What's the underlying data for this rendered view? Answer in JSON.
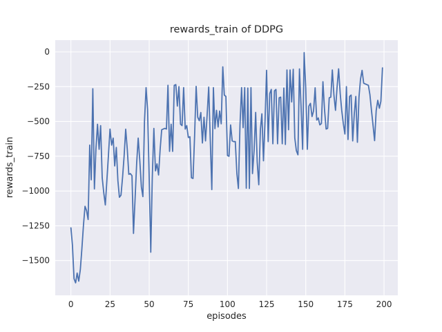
{
  "chart_data": {
    "type": "line",
    "title": "rewards_train of DDPG",
    "xlabel": "episodes",
    "ylabel": "rewards_train",
    "x_ticks": [
      0,
      25,
      50,
      75,
      100,
      125,
      150,
      175,
      200
    ],
    "y_ticks": [
      0,
      -250,
      -500,
      -750,
      -1000,
      -1250,
      -1500
    ],
    "xlim": [
      -10,
      208.8
    ],
    "ylim": [
      -1750,
      84.5
    ],
    "grid": true,
    "legend_position": "none",
    "colors": {
      "line": "#4c72b0",
      "plot_background": "#eaeaf2",
      "grid_line": "#ffffff",
      "text": "#262626"
    },
    "series": [
      {
        "name": "rewards_train",
        "x_is_episode_index": true,
        "values": [
          -1265,
          -1390,
          -1630,
          -1660,
          -1590,
          -1648,
          -1565,
          -1420,
          -1250,
          -1110,
          -1140,
          -1205,
          -670,
          -920,
          -265,
          -985,
          -700,
          -520,
          -700,
          -530,
          -905,
          -1015,
          -1100,
          -920,
          -737,
          -555,
          -670,
          -620,
          -820,
          -687,
          -925,
          -1045,
          -1030,
          -900,
          -750,
          -556,
          -700,
          -880,
          -875,
          -890,
          -1305,
          -1055,
          -800,
          -620,
          -780,
          -970,
          -1040,
          -500,
          -257,
          -415,
          -900,
          -1440,
          -905,
          -550,
          -855,
          -805,
          -885,
          -700,
          -560,
          -555,
          -550,
          -555,
          -240,
          -715,
          -520,
          -715,
          -240,
          -235,
          -390,
          -250,
          -520,
          -530,
          -257,
          -555,
          -530,
          -615,
          -610,
          -905,
          -910,
          -600,
          -248,
          -470,
          -495,
          -436,
          -655,
          -470,
          -640,
          -455,
          -253,
          -620,
          -990,
          -257,
          -552,
          -420,
          -540,
          -425,
          -517,
          -108,
          -310,
          -320,
          -745,
          -750,
          -525,
          -640,
          -645,
          -645,
          -875,
          -982,
          -525,
          -257,
          -545,
          -257,
          -980,
          -260,
          -982,
          -257,
          -875,
          -710,
          -435,
          -790,
          -955,
          -560,
          -445,
          -783,
          -490,
          -133,
          -645,
          -300,
          -270,
          -660,
          -280,
          -270,
          -660,
          -330,
          -325,
          -660,
          -260,
          -665,
          -130,
          -560,
          -130,
          -360,
          -125,
          -617,
          -710,
          -740,
          -123,
          -390,
          -700,
          -5,
          -260,
          -700,
          -390,
          -370,
          -465,
          -425,
          -258,
          -490,
          -475,
          -525,
          -515,
          -215,
          -415,
          -555,
          -550,
          -330,
          -325,
          -130,
          -310,
          -420,
          -258,
          -122,
          -300,
          -420,
          -515,
          -590,
          -250,
          -630,
          -320,
          -310,
          -640,
          -445,
          -320,
          -650,
          -325,
          -196,
          -133,
          -225,
          -230,
          -235,
          -240,
          -307,
          -422,
          -530,
          -638,
          -422,
          -348,
          -405,
          -355,
          -115
        ]
      }
    ]
  }
}
